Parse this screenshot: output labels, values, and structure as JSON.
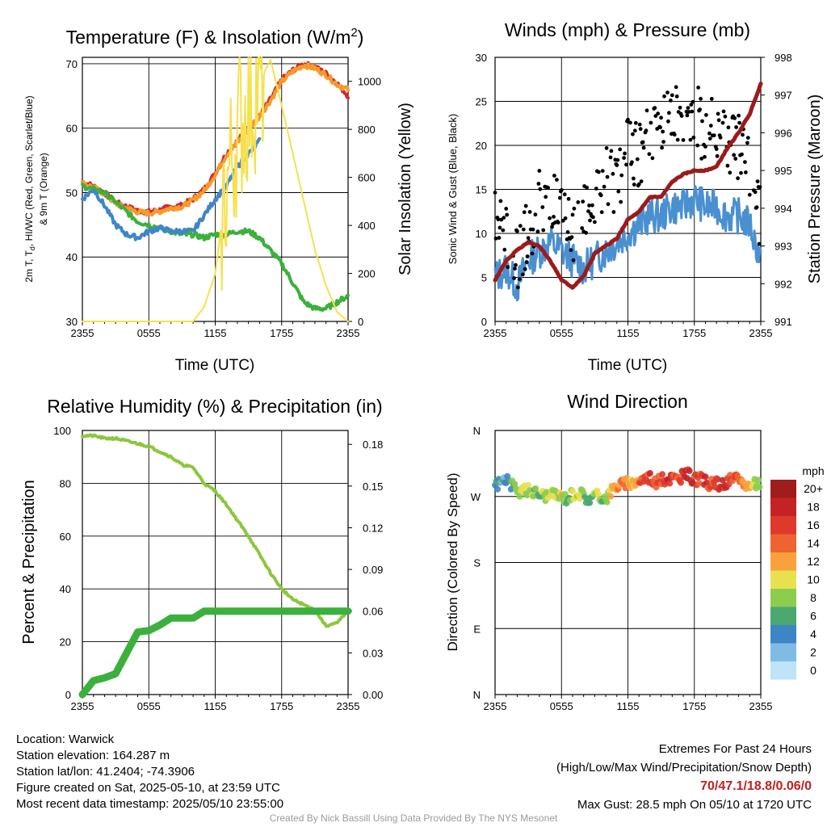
{
  "temp": {
    "title": "Temperature (F) & Insolation (W/m",
    "title_sup": "2",
    "title_end": ")",
    "ylabel_line1": "2m T, T",
    "ylabel_sub": "d",
    "ylabel_rest": ", HI/WC (Red, Green, Scarlet/Blue)",
    "ylabel_line2": "& 9m T (Orange)",
    "y2label": "Solar Insolation (Yellow)",
    "xlabel": "Time (UTC)"
  },
  "winds": {
    "title": "Winds (mph) & Pressure (mb)",
    "ylabel": "Sonic Wind & Gust (Blue, Black)",
    "y2label": "Station Pressure (Maroon)",
    "xlabel": "Time (UTC)"
  },
  "rh": {
    "title": "Relative Humidity (%) & Precipitation (in)",
    "ylabel": "Percent & Precipitation"
  },
  "wdir": {
    "title": "Wind Direction",
    "ylabel": "Direction (Colored By Speed)",
    "legend_title": "mph",
    "legend_labels": [
      "20+",
      "18",
      "16",
      "14",
      "12",
      "10",
      "8",
      "6",
      "4",
      "2",
      "0"
    ],
    "legend_colors": [
      "#a01d1d",
      "#c42326",
      "#dd3a2c",
      "#ef6331",
      "#f9a23d",
      "#e9e04f",
      "#8ccc4f",
      "#4aa870",
      "#3e85c6",
      "#80bbe6",
      "#bfe3f7"
    ]
  },
  "info": {
    "location": "Location: Warwick",
    "elevation": "Station elevation: 164.287 m",
    "latlon": "Station lat/lon: 41.2404; -74.3906",
    "created": "Figure created on Sat, 2025-05-10, at 23:59 UTC",
    "recent": "Most recent data timestamp: 2025/05/10 23:55:00"
  },
  "extremes": {
    "line1": "Extremes For Past 24 Hours",
    "line2": "(High/Low/Max Wind/Precipitation/Snow Depth)",
    "values": "70/47.1/18.8/0.06/0",
    "gust": "Max Gust: 28.5 mph On 05/10 at 1720 UTC"
  },
  "credit": "Created By Nick Bassill Using Data Provided By The NYS Mesonet",
  "chart_data": [
    {
      "type": "line",
      "title": "Temperature (F) & Insolation (W/m2)",
      "xlabel": "Time (UTC)",
      "ylabel": "2m T, Td, HI/WC (Red, Green, Scarlet/Blue) & 9m T (Orange)",
      "y2label": "Solar Insolation (Yellow)",
      "x_ticks": [
        "2355",
        "0555",
        "1155",
        "1755",
        "2355"
      ],
      "ylim": [
        30,
        71
      ],
      "y_ticks": [
        30,
        40,
        50,
        60,
        70
      ],
      "y2lim": [
        0,
        1100
      ],
      "y2_ticks": [
        0,
        200,
        400,
        600,
        800,
        1000
      ],
      "x_hours": [
        0,
        1,
        2,
        3,
        4,
        5,
        6,
        7,
        8,
        9,
        10,
        11,
        12,
        13,
        14,
        15,
        16,
        17,
        18,
        19,
        20,
        21,
        22,
        23,
        24
      ],
      "series": [
        {
          "name": "2m T",
          "color": "#d62728",
          "axis": "left",
          "values": [
            51.7,
            51,
            50,
            48.5,
            47.8,
            47.2,
            47,
            47.3,
            47.8,
            48,
            49,
            50.5,
            53,
            56,
            58,
            60,
            62,
            64.5,
            67.5,
            69,
            70,
            69.5,
            68.5,
            67,
            65
          ]
        },
        {
          "name": "9m T",
          "color": "#f59b2b",
          "axis": "left",
          "values": [
            51.5,
            50.8,
            49.8,
            48.3,
            47.6,
            47,
            46.8,
            47.1,
            47.6,
            47.8,
            48.8,
            50.3,
            52.8,
            55.8,
            57.8,
            59.8,
            61.8,
            64.3,
            67.2,
            68.8,
            69.8,
            69.3,
            68.3,
            66.8,
            66
          ]
        },
        {
          "name": "Td",
          "color": "#3cb03c",
          "axis": "left",
          "values": [
            51,
            50.5,
            50,
            48.5,
            47,
            45.5,
            45,
            44.5,
            44,
            43.5,
            43.5,
            43,
            43.5,
            43.5,
            44,
            44,
            43,
            41,
            39,
            36,
            33,
            32,
            32,
            33,
            34
          ]
        },
        {
          "name": "WC",
          "color": "#3f86c8",
          "axis": "left",
          "values": [
            49,
            50.5,
            48,
            45,
            43.5,
            43,
            44,
            44.5,
            44,
            44,
            44,
            46.5,
            49,
            51,
            54,
            56,
            58
          ]
        },
        {
          "name": "Solar",
          "color": "#f7e04e",
          "axis": "right",
          "values": [
            0,
            0,
            0,
            0,
            0,
            0,
            0,
            0,
            0,
            0,
            0,
            60,
            200,
            560,
            800,
            900,
            1000,
            1090,
            900,
            700,
            500,
            300,
            150,
            40,
            0
          ]
        }
      ]
    },
    {
      "type": "line",
      "title": "Winds (mph) & Pressure (mb)",
      "xlabel": "Time (UTC)",
      "ylabel": "Sonic Wind & Gust (Blue, Black)",
      "y2label": "Station Pressure (Maroon)",
      "x_ticks": [
        "2355",
        "0555",
        "1155",
        "1755",
        "2355"
      ],
      "ylim": [
        0,
        30
      ],
      "y_ticks": [
        0,
        5,
        10,
        15,
        20,
        25,
        30
      ],
      "y2lim": [
        991,
        998
      ],
      "y2_ticks": [
        991,
        992,
        993,
        994,
        995,
        996,
        997,
        998
      ],
      "x_hours": [
        0,
        1,
        2,
        3,
        4,
        5,
        6,
        7,
        8,
        9,
        10,
        11,
        12,
        13,
        14,
        15,
        16,
        17,
        18,
        19,
        20,
        21,
        22,
        23,
        24
      ],
      "series": [
        {
          "name": "Sonic Wind",
          "color": "#4a90d0",
          "axis": "left",
          "values": [
            5,
            6,
            4,
            7,
            8,
            9,
            8,
            7,
            6,
            7,
            8,
            9,
            10,
            11,
            12,
            12,
            13,
            13,
            14,
            13,
            13,
            12,
            12,
            11,
            7
          ]
        },
        {
          "name": "Gust",
          "color": "#000000",
          "axis": "left",
          "values": [
            11,
            9,
            7,
            10,
            14,
            14,
            11,
            10,
            13,
            13,
            16,
            16,
            19,
            19,
            21,
            21,
            23,
            24,
            23,
            22,
            22,
            20,
            20,
            17,
            11
          ]
        },
        {
          "name": "Station Pressure",
          "color": "#9b1b1b",
          "axis": "right",
          "values": [
            992.1,
            992.6,
            992.9,
            993.1,
            993.0,
            992.6,
            992.1,
            991.9,
            992.2,
            992.8,
            993.0,
            993.2,
            993.7,
            993.9,
            994.3,
            994.3,
            994.7,
            994.9,
            995.0,
            995.0,
            995.1,
            995.6,
            996.0,
            996.5,
            997.3
          ]
        }
      ]
    },
    {
      "type": "line",
      "title": "Relative Humidity (%) & Precipitation (in)",
      "ylabel": "Percent & Precipitation",
      "x_ticks": [
        "2355",
        "0555",
        "1155",
        "1755",
        "2355"
      ],
      "ylim": [
        0,
        100
      ],
      "y_ticks": [
        0,
        20,
        40,
        60,
        80,
        100
      ],
      "y2lim": [
        0,
        0.19
      ],
      "y2_ticks": [
        "0.00",
        "0.03",
        "0.06",
        "0.09",
        "0.12",
        "0.15",
        "0.18"
      ],
      "x_hours": [
        0,
        1,
        2,
        3,
        4,
        5,
        6,
        7,
        8,
        9,
        10,
        11,
        12,
        13,
        14,
        15,
        16,
        17,
        18,
        19,
        20,
        21,
        22,
        23,
        24
      ],
      "series": [
        {
          "name": "RH",
          "color": "#8cc63f",
          "axis": "left",
          "values": [
            98,
            98,
            97,
            97,
            96,
            95,
            94,
            92,
            90,
            87,
            86,
            80,
            77,
            72,
            66,
            60,
            53,
            46,
            40,
            36,
            34,
            32,
            26,
            27,
            32
          ]
        },
        {
          "name": "Precipitation",
          "color": "#3cb03c",
          "axis": "right",
          "values": [
            0,
            0.01,
            0.012,
            0.015,
            0.03,
            0.045,
            0.046,
            0.05,
            0.055,
            0.055,
            0.055,
            0.06,
            0.06,
            0.06,
            0.06,
            0.06,
            0.06,
            0.06,
            0.06,
            0.06,
            0.06,
            0.06,
            0.06,
            0.06,
            0.06
          ]
        }
      ]
    },
    {
      "type": "scatter",
      "title": "Wind Direction",
      "ylabel": "Direction (Colored By Speed)",
      "x_ticks": [
        "2355",
        "0555",
        "1155",
        "1755",
        "2355"
      ],
      "y_ticks": [
        "N",
        "E",
        "S",
        "W",
        "N"
      ],
      "ylim": [
        0,
        360
      ],
      "colorbar_label": "mph",
      "series": [
        {
          "name": "Direction",
          "hours": [
            0,
            0.5,
            1,
            1.5,
            2,
            2.5,
            3,
            3.5,
            4,
            4.5,
            5,
            5.5,
            6,
            6.5,
            7,
            7.5,
            8,
            8.5,
            9,
            9.5,
            10,
            10.5,
            11,
            11.5,
            12,
            12.5,
            13,
            13.5,
            14,
            14.5,
            15,
            15.5,
            16,
            16.5,
            17,
            17.5,
            18,
            18.5,
            19,
            19.5,
            20,
            20.5,
            21,
            21.5,
            22,
            22.5,
            23,
            23.5
          ],
          "degrees": [
            285,
            290,
            295,
            285,
            275,
            280,
            278,
            276,
            274,
            272,
            271,
            273,
            270,
            268,
            274,
            276,
            272,
            265,
            272,
            270,
            268,
            278,
            285,
            287,
            288,
            290,
            292,
            295,
            297,
            289,
            292,
            294,
            296,
            293,
            298,
            300,
            292,
            294,
            290,
            286,
            288,
            285,
            290,
            295,
            291,
            288,
            284,
            286
          ],
          "speeds": [
            5,
            4,
            3,
            6,
            8,
            10,
            9,
            8,
            7,
            9,
            8,
            9,
            10,
            6,
            9,
            10,
            8,
            5,
            9,
            8,
            7,
            12,
            13,
            14,
            12,
            11,
            14,
            15,
            16,
            14,
            15,
            17,
            16,
            14,
            17,
            18,
            16,
            15,
            17,
            14,
            16,
            18,
            17,
            15,
            14,
            13,
            12,
            8
          ]
        }
      ]
    }
  ]
}
